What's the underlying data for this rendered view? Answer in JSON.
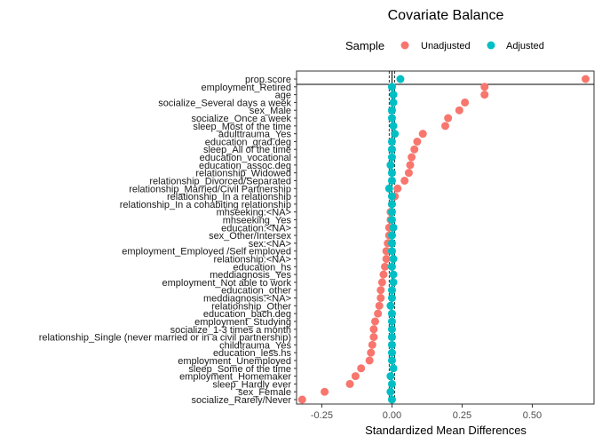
{
  "chart_data": {
    "type": "scatter",
    "title": "Covariate Balance",
    "xlabel": "Standardized Mean Differences",
    "ylabel": "",
    "xlim": [
      -0.34,
      0.72
    ],
    "xticks": [
      -0.25,
      0.0,
      0.25,
      0.5
    ],
    "xtick_labels": [
      "-0.25",
      "0.00",
      "0.25",
      "0.50"
    ],
    "reference_lines": [
      0,
      -0.01,
      0.01
    ],
    "legend": {
      "title": "Sample",
      "position": "top"
    },
    "categories": [
      "prop.score",
      "employment_Retired",
      "age",
      "socialize_Several days a week",
      "sex_Male",
      "socialize_Once a week",
      "sleep_Most of the time",
      "adulttrauma_Yes",
      "education_grad.deg",
      "sleep_All of the time",
      "education_vocational",
      "education_assoc.deg",
      "relationship_Widowed",
      "relationship_Divorced/Separated",
      "relationship_Married/Civil Partnership",
      "relationship_In a relationship",
      "relationship_In a cohabiting relationship",
      "mhseeking:<NA>",
      "mhseeking_Yes",
      "education:<NA>",
      "sex_Other/Intersex",
      "sex:<NA>",
      "employment_Employed /Self employed",
      "relationship:<NA>",
      "education_hs",
      "meddiagnosis_Yes",
      "employment_Not able to work",
      "education_other",
      "meddiagnosis:<NA>",
      "relationship_Other",
      "education_bach.deg",
      "employment_Studying",
      "socialize_1-3 times a month",
      "relationship_Single (never married or in a civil partnership)",
      "childtrauma_Yes",
      "education_less.hs",
      "employment_Unemployed",
      "sleep_Some of the time",
      "employment_Homemaker",
      "sleep_Hardly ever",
      "sex_Female",
      "socialize_Rarely/Never"
    ],
    "series": [
      {
        "name": "Unadjusted",
        "color": "#F8766D",
        "values": [
          0.69,
          0.33,
          0.33,
          0.26,
          0.24,
          0.2,
          0.19,
          0.11,
          0.09,
          0.08,
          0.07,
          0.065,
          0.06,
          0.045,
          0.02,
          0.01,
          0.0,
          -0.005,
          -0.005,
          -0.01,
          -0.01,
          -0.015,
          -0.02,
          -0.02,
          -0.025,
          -0.03,
          -0.035,
          -0.04,
          -0.04,
          -0.045,
          -0.05,
          -0.06,
          -0.065,
          -0.065,
          -0.07,
          -0.075,
          -0.08,
          -0.11,
          -0.13,
          -0.15,
          -0.24,
          -0.32
        ]
      },
      {
        "name": "Adjusted",
        "color": "#00BFC4",
        "values": [
          0.03,
          0.0,
          0.005,
          0.005,
          0.0,
          0.0,
          0.005,
          0.01,
          0.0,
          0.0,
          0.0,
          -0.005,
          0.0,
          0.0,
          -0.01,
          0.0,
          0.0,
          0.0,
          0.0,
          0.005,
          0.0,
          0.0,
          0.0,
          0.005,
          0.0,
          0.005,
          0.005,
          0.0,
          0.0,
          -0.005,
          0.0,
          0.0,
          0.0,
          0.0,
          0.0,
          0.0,
          0.0,
          0.005,
          -0.005,
          0.0,
          -0.005,
          0.0
        ]
      }
    ]
  }
}
